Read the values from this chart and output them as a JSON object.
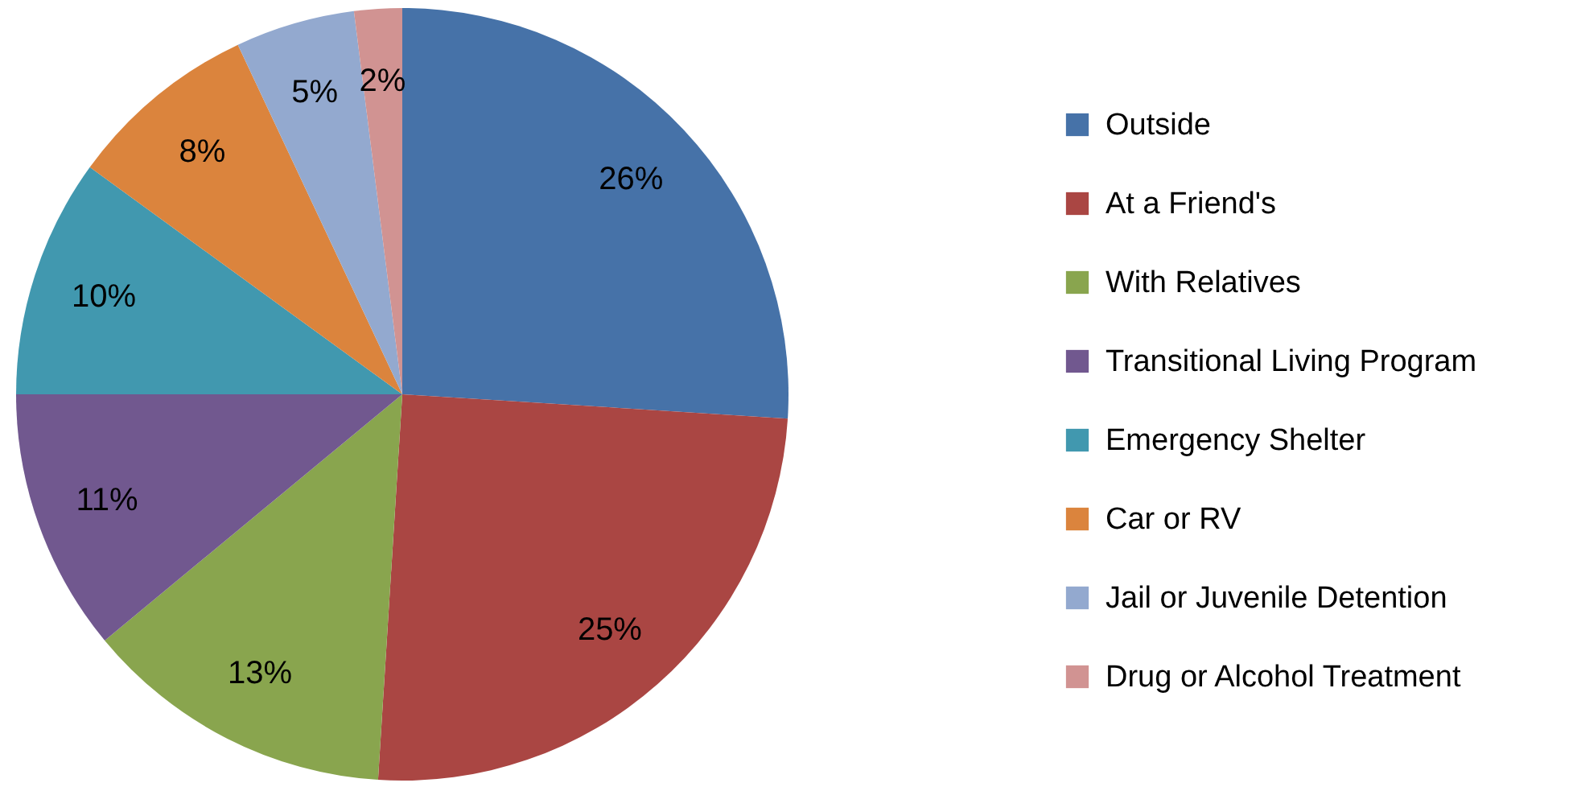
{
  "chart_data": {
    "type": "pie",
    "categories": [
      "Outside",
      "At a Friend's",
      "With Relatives",
      "Transitional Living Program",
      "Emergency Shelter",
      "Car or RV",
      "Jail or Juvenile Detention",
      "Drug or Alcohol Treatment"
    ],
    "values": [
      26,
      25,
      13,
      11,
      10,
      8,
      5,
      2
    ],
    "value_labels": [
      "26%",
      "25%",
      "13%",
      "11%",
      "10%",
      "8%",
      "5%",
      "2%"
    ],
    "colors": [
      "#4672a8",
      "#aa4643",
      "#89a54e",
      "#71588f",
      "#4198af",
      "#db843d",
      "#93a9cf",
      "#d19392"
    ],
    "legend": "right"
  }
}
